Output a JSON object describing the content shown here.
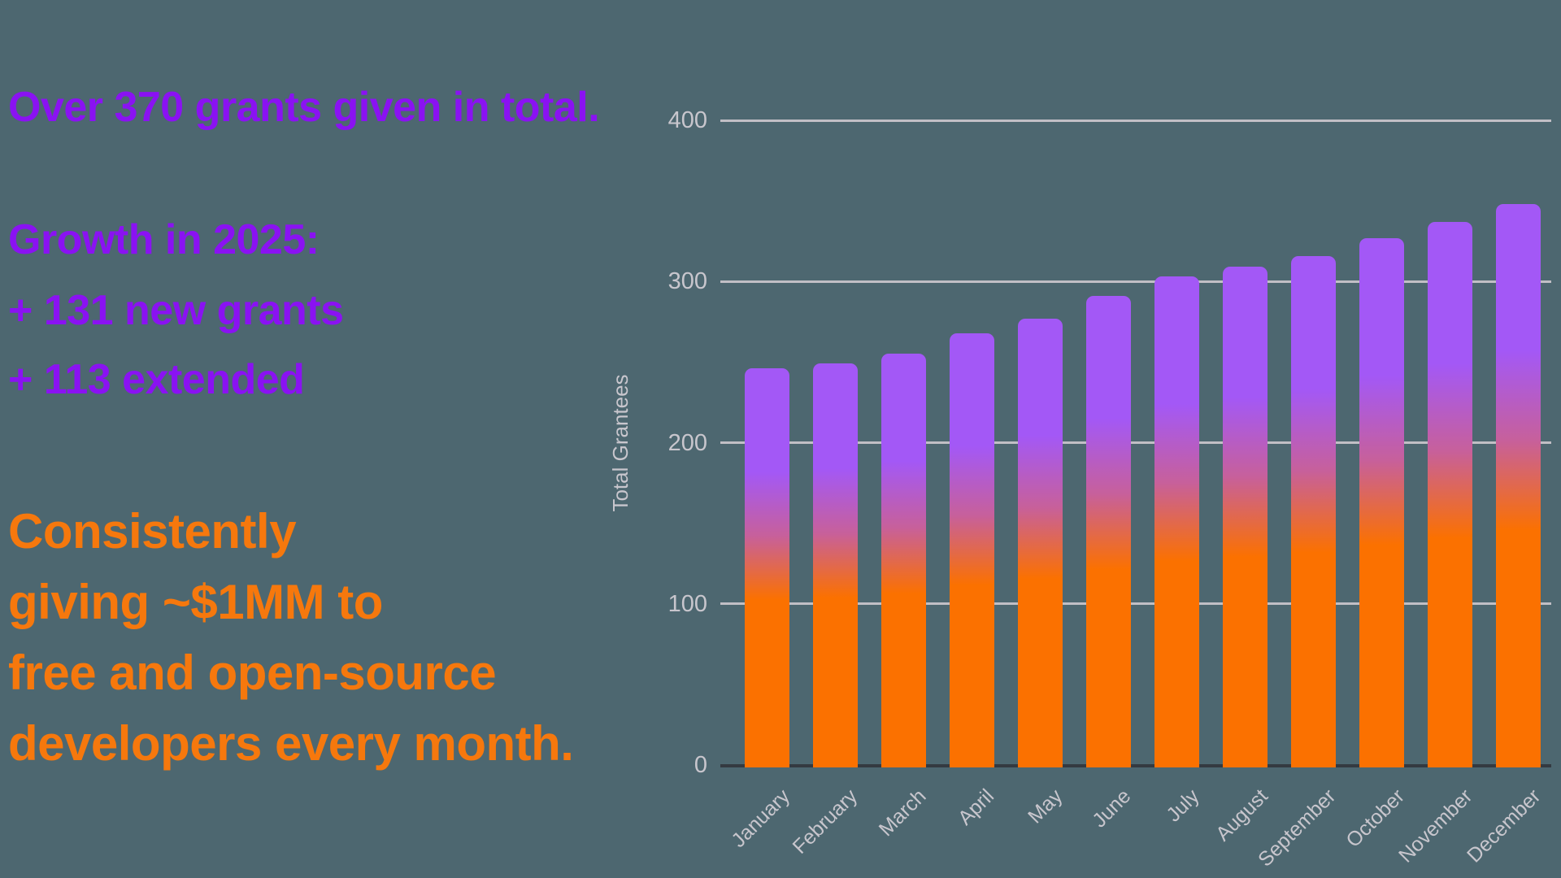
{
  "panel": {
    "headline": "Over 370 grants given in total.",
    "growth_title": "Growth in 2025:",
    "growth_line1": "+ 131 new grants",
    "growth_line2": "+ 113 extended",
    "impact_lines": [
      "Consistently",
      "giving ~$1MM to",
      "free and open-source",
      "developers every month."
    ]
  },
  "colors": {
    "background": "#4D6770",
    "headline_purple": "#8A12F2",
    "impact_orange": "#F6780D",
    "bar_top_purple": "#A358F6",
    "bar_mid_pink": "#C7609B",
    "bar_bottom_orange": "#FB7100",
    "gridline_gray": "#C1BFC5",
    "axis_dark": "#343A41",
    "tick_text_gray": "#C8C6CD"
  },
  "chart_data": {
    "type": "bar",
    "title": "",
    "categories": [
      "January",
      "February",
      "March",
      "April",
      "May",
      "June",
      "July",
      "August",
      "September",
      "October",
      "November",
      "December"
    ],
    "values": [
      246,
      249,
      255,
      268,
      277,
      291,
      303,
      309,
      316,
      327,
      337,
      348
    ],
    "xlabel": "",
    "ylabel": "Total Grantees",
    "ylim": [
      0,
      400
    ],
    "yticks": [
      "0",
      "100",
      "200",
      "300",
      "400"
    ],
    "grid": true,
    "legend": "none",
    "bar_gradient_top_to_bottom": [
      "#A358F6",
      "#C7609B",
      "#FB7100"
    ],
    "x_tick_rotation_deg": -45
  }
}
